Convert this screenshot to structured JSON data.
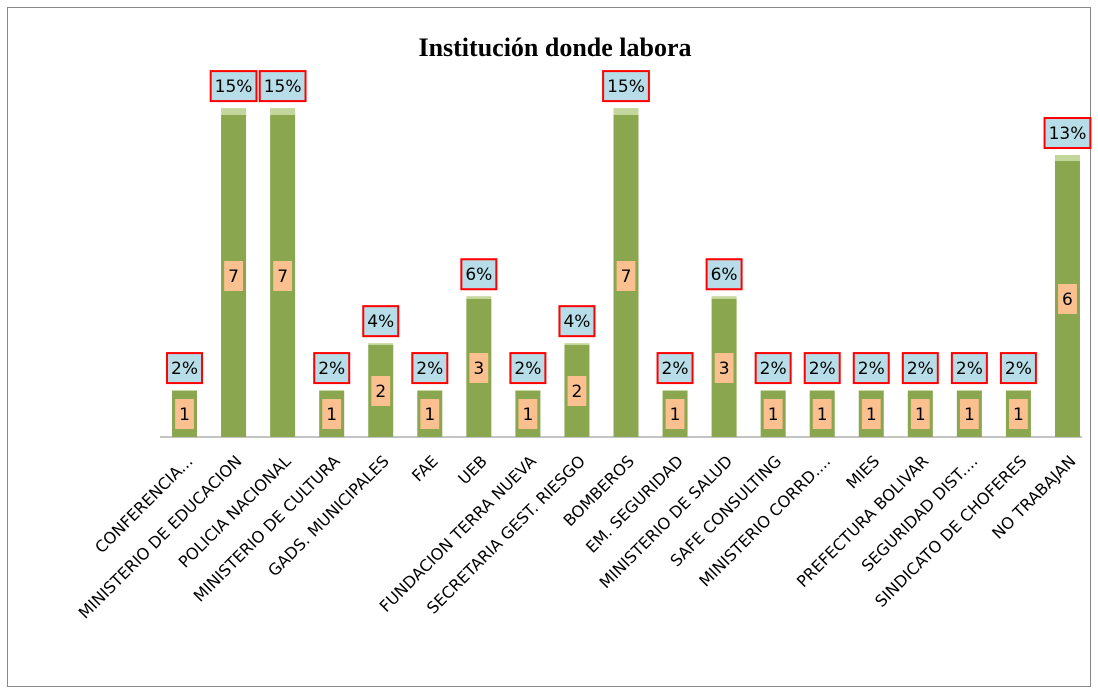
{
  "chart_data": {
    "type": "bar",
    "stacked": true,
    "title": "Institución donde labora",
    "categories": [
      "CONFERENCIA...",
      "MINISTERIO DE EDUCACION",
      "POLICIA NACIONAL",
      "MINISTERIO DE CULTURA",
      "GADS. MUNICIPALES",
      "FAE",
      "UEB",
      "FUNDACION TERRA NUEVA",
      "SECRETARIA GEST. RIESGO",
      "BOMBEROS",
      "EM. SEGURIDAD",
      "MINISTERIO DE SALUD",
      "SAFE CONSULTING",
      "MINISTERIO CORRD....",
      "MIES",
      "PREFECTURA BOLIVAR",
      "SEGURIDAD DIST....",
      "SINDICATO DE CHOFERES",
      "NO TRABAJAN"
    ],
    "series": [
      {
        "color": "#8aa64f",
        "label_color": "#fac090",
        "values": [
          1,
          7,
          7,
          1,
          2,
          1,
          3,
          1,
          2,
          7,
          1,
          3,
          1,
          1,
          1,
          1,
          1,
          1,
          6
        ]
      },
      {
        "color": "#c3d69b",
        "label_color": "#b7dee8",
        "values": [
          0.02,
          0.15,
          0.15,
          0.02,
          0.04,
          0.02,
          0.06,
          0.02,
          0.04,
          0.15,
          0.02,
          0.06,
          0.02,
          0.02,
          0.02,
          0.02,
          0.02,
          0.02,
          0.13
        ],
        "value_labels": [
          "2%",
          "15%",
          "15%",
          "2%",
          "4%",
          "2%",
          "6%",
          "2%",
          "4%",
          "15%",
          "2%",
          "6%",
          "2%",
          "2%",
          "2%",
          "2%",
          "2%",
          "2%",
          "13%"
        ]
      }
    ],
    "ylim": [
      0,
      8
    ],
    "grid": false,
    "legend": false
  }
}
